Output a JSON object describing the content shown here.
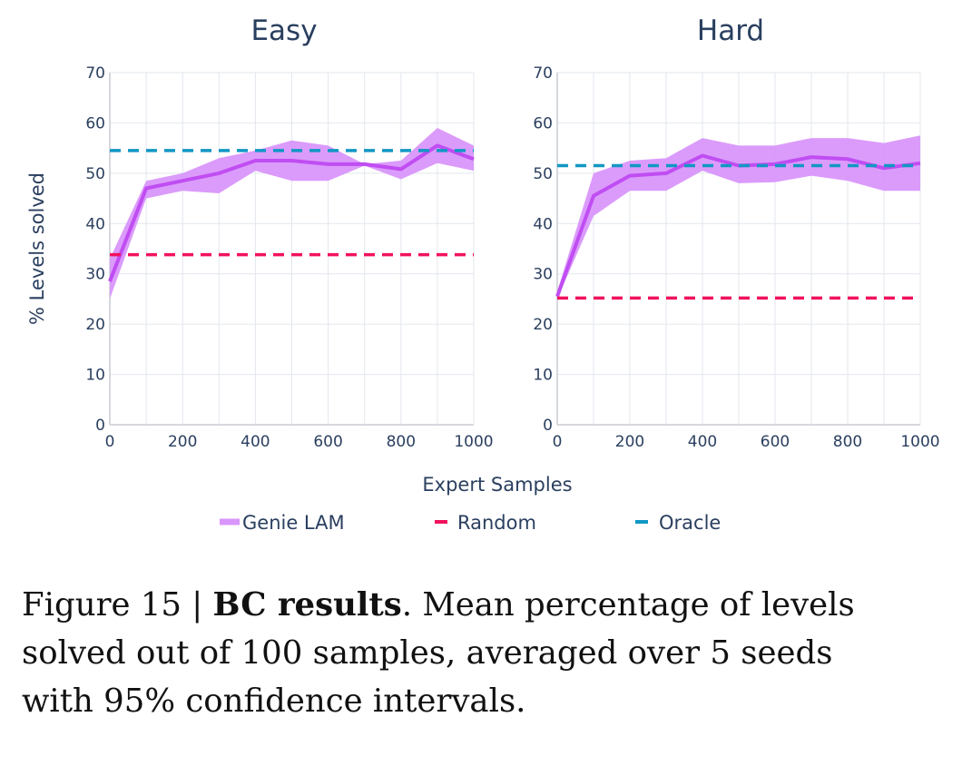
{
  "chart_data": {
    "type": "line",
    "subplots": [
      {
        "title": "Easy",
        "x": [
          0,
          100,
          200,
          300,
          400,
          500,
          600,
          700,
          800,
          900,
          1000
        ],
        "series": [
          {
            "name": "Genie LAM",
            "values": [
              28.5,
              47,
              48.5,
              50,
              52.5,
              52.5,
              51.8,
              51.8,
              50.8,
              55.5,
              52.8
            ],
            "lower": [
              25,
              45,
              46.5,
              46,
              50.5,
              48.5,
              48.5,
              51.5,
              48.8,
              52,
              50.5
            ],
            "upper": [
              33,
              48.5,
              50,
              53,
              54.5,
              56.5,
              55.5,
              51.8,
              52.5,
              59,
              55.5
            ]
          },
          {
            "name": "Random",
            "constant": 33.8
          },
          {
            "name": "Oracle",
            "constant": 54.5
          }
        ]
      },
      {
        "title": "Hard",
        "x": [
          0,
          100,
          200,
          300,
          400,
          500,
          600,
          700,
          800,
          900,
          1000
        ],
        "series": [
          {
            "name": "Genie LAM",
            "values": [
              25.5,
              45.5,
              49.5,
              50,
              53.5,
              51.5,
              51.8,
              53.2,
              52.8,
              51,
              52
            ],
            "lower": [
              25,
              41.5,
              46.5,
              46.5,
              50.5,
              48,
              48.2,
              49.5,
              48.5,
              46.5,
              46.5
            ],
            "upper": [
              26.5,
              50,
              52.5,
              53,
              57,
              55.5,
              55.5,
              57,
              57,
              56,
              57.5
            ]
          },
          {
            "name": "Random",
            "constant": 25.2
          },
          {
            "name": "Oracle",
            "constant": 51.5
          }
        ]
      }
    ],
    "xlabel": "Expert Samples",
    "ylabel": "% Levels solved",
    "xlim": [
      0,
      1000
    ],
    "ylim": [
      0,
      70
    ],
    "xticks": [
      0,
      200,
      400,
      600,
      800,
      1000
    ],
    "yticks": [
      0,
      10,
      20,
      30,
      40,
      50,
      60,
      70
    ],
    "grid": true,
    "legend": {
      "position": "bottom",
      "entries": [
        "Genie LAM",
        "Random",
        "Oracle"
      ]
    },
    "colors": {
      "Genie LAM": "#c04df2",
      "Genie LAM band": "#d996fb",
      "Random": "#f1125e",
      "Oracle": "#1197c4"
    }
  },
  "caption": {
    "prefix": "Figure 15 | ",
    "bold": "BC results",
    "line1": ". Mean percentage of levels",
    "line2": "solved out of 100 samples, averaged over 5 seeds",
    "line3": "with 95% confidence intervals."
  }
}
